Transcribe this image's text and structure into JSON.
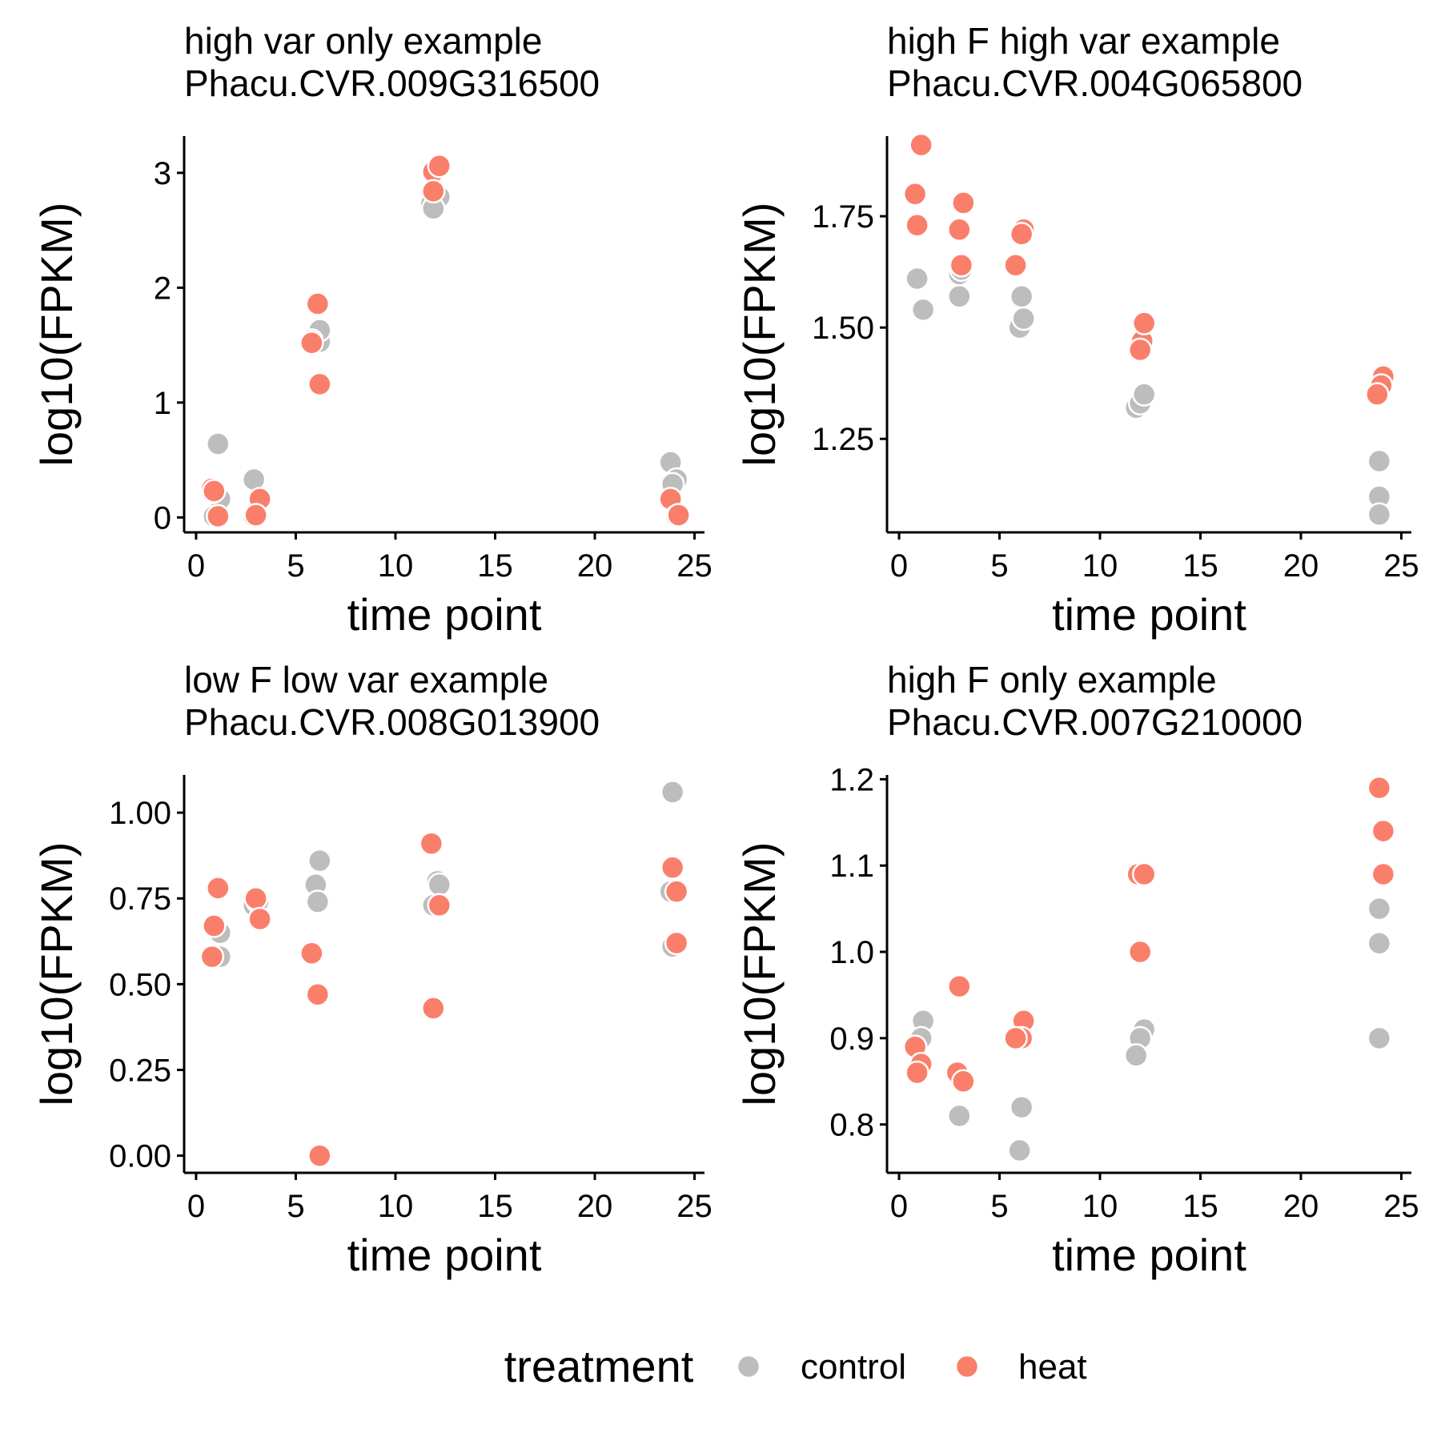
{
  "colors": {
    "control": "#BDBDBD",
    "heat": "#FA7F6B",
    "point_edge": "#FFFFFF",
    "axis": "#000000",
    "background": "#FFFFFF"
  },
  "legend": {
    "title": "treatment",
    "items": [
      {
        "label": "control",
        "color": "#BDBDBD"
      },
      {
        "label": "heat",
        "color": "#FA7F6B"
      }
    ],
    "placement": "bottom"
  },
  "chart_data": [
    {
      "type": "scatter",
      "title_line1": "high var only example",
      "title_line2": "Phacu.CVR.009G316500",
      "xlabel": "time point",
      "ylabel": "log10(FPKM)",
      "xlim": [
        -0.6,
        25.5
      ],
      "ylim": [
        -0.13,
        3.32
      ],
      "xticks": [
        0,
        5,
        10,
        15,
        20,
        25
      ],
      "xtick_labels": [
        "0",
        "5",
        "10",
        "15",
        "20",
        "25"
      ],
      "yticks": [
        0,
        1,
        2,
        3
      ],
      "ytick_labels": [
        "0",
        "1",
        "2",
        "3"
      ],
      "grid": false,
      "series": [
        {
          "name": "control",
          "points": [
            [
              0.9,
              0.01
            ],
            [
              1.2,
              0.16
            ],
            [
              1.1,
              0.64
            ],
            [
              0.8,
              0.22
            ],
            [
              2.9,
              0.33
            ],
            [
              3.1,
              0.02
            ],
            [
              2.8,
              0.01
            ],
            [
              5.9,
              1.55
            ],
            [
              6.2,
              1.53
            ],
            [
              6.2,
              1.63
            ],
            [
              5.8,
              1.54
            ],
            [
              11.8,
              2.73
            ],
            [
              12.1,
              2.76
            ],
            [
              12.2,
              2.79
            ],
            [
              11.9,
              2.69
            ],
            [
              23.8,
              0.48
            ],
            [
              24.1,
              0.33
            ],
            [
              23.9,
              0.29
            ],
            [
              24.2,
              0.02
            ]
          ]
        },
        {
          "name": "heat",
          "points": [
            [
              0.8,
              0.25
            ],
            [
              1.1,
              0.01
            ],
            [
              0.9,
              0.23
            ],
            [
              3.2,
              0.16
            ],
            [
              2.9,
              0.01
            ],
            [
              3.0,
              0.02
            ],
            [
              6.1,
              1.86
            ],
            [
              6.2,
              1.16
            ],
            [
              5.8,
              1.52
            ],
            [
              11.9,
              3.01
            ],
            [
              12.2,
              3.06
            ],
            [
              11.9,
              2.84
            ],
            [
              23.8,
              0.16
            ],
            [
              24.1,
              0.01
            ],
            [
              24.2,
              0.02
            ]
          ]
        }
      ]
    },
    {
      "type": "scatter",
      "title_line1": "high F high var example",
      "title_line2": "Phacu.CVR.004G065800",
      "xlabel": "time point",
      "ylabel": "log10(FPKM)",
      "xlim": [
        -0.6,
        25.5
      ],
      "ylim": [
        1.04,
        1.93
      ],
      "xticks": [
        0,
        5,
        10,
        15,
        20,
        25
      ],
      "xtick_labels": [
        "0",
        "5",
        "10",
        "15",
        "20",
        "25"
      ],
      "yticks": [
        1.25,
        1.5,
        1.75
      ],
      "ytick_labels": [
        "1.25",
        "1.50",
        "1.75"
      ],
      "grid": false,
      "series": [
        {
          "name": "control",
          "points": [
            [
              0.9,
              1.61
            ],
            [
              1.1,
              1.54
            ],
            [
              1.2,
              1.54
            ],
            [
              3.0,
              1.62
            ],
            [
              3.0,
              1.57
            ],
            [
              3.1,
              1.63
            ],
            [
              6.0,
              1.5
            ],
            [
              6.1,
              1.57
            ],
            [
              6.2,
              1.52
            ],
            [
              11.8,
              1.32
            ],
            [
              12.0,
              1.33
            ],
            [
              12.2,
              1.35
            ],
            [
              23.9,
              1.2
            ],
            [
              23.9,
              1.12
            ],
            [
              23.9,
              1.08
            ]
          ]
        },
        {
          "name": "heat",
          "points": [
            [
              1.1,
              1.91
            ],
            [
              0.8,
              1.8
            ],
            [
              0.9,
              1.73
            ],
            [
              3.2,
              1.78
            ],
            [
              3.0,
              1.72
            ],
            [
              3.1,
              1.64
            ],
            [
              6.2,
              1.72
            ],
            [
              6.1,
              1.71
            ],
            [
              5.8,
              1.64
            ],
            [
              12.1,
              1.47
            ],
            [
              12.2,
              1.51
            ],
            [
              12.0,
              1.45
            ],
            [
              24.1,
              1.39
            ],
            [
              24.0,
              1.37
            ],
            [
              23.8,
              1.35
            ]
          ]
        }
      ]
    },
    {
      "type": "scatter",
      "title_line1": "low F low var example",
      "title_line2": "Phacu.CVR.008G013900",
      "xlabel": "time point",
      "ylabel": "log10(FPKM)",
      "xlim": [
        -0.6,
        25.5
      ],
      "ylim": [
        -0.05,
        1.11
      ],
      "xticks": [
        0,
        5,
        10,
        15,
        20,
        25
      ],
      "xtick_labels": [
        "0",
        "5",
        "10",
        "15",
        "20",
        "25"
      ],
      "yticks": [
        0,
        0.25,
        0.5,
        0.75,
        1.0
      ],
      "ytick_labels": [
        "0.00",
        "0.25",
        "0.50",
        "0.75",
        "1.00"
      ],
      "grid": false,
      "series": [
        {
          "name": "control",
          "points": [
            [
              1.2,
              0.65
            ],
            [
              1.2,
              0.58
            ],
            [
              2.9,
              0.73
            ],
            [
              3.1,
              0.74
            ],
            [
              6.2,
              0.86
            ],
            [
              6.0,
              0.79
            ],
            [
              6.1,
              0.74
            ],
            [
              11.9,
              0.73
            ],
            [
              12.1,
              0.8
            ],
            [
              12.2,
              0.79
            ],
            [
              23.9,
              1.06
            ],
            [
              23.8,
              0.77
            ],
            [
              23.9,
              0.61
            ]
          ]
        },
        {
          "name": "heat",
          "points": [
            [
              1.1,
              0.78
            ],
            [
              0.9,
              0.67
            ],
            [
              0.8,
              0.58
            ],
            [
              3.0,
              0.75
            ],
            [
              3.2,
              0.69
            ],
            [
              5.8,
              0.59
            ],
            [
              6.1,
              0.47
            ],
            [
              6.2,
              0.0
            ],
            [
              11.8,
              0.91
            ],
            [
              12.2,
              0.73
            ],
            [
              11.9,
              0.43
            ],
            [
              23.9,
              0.84
            ],
            [
              24.1,
              0.77
            ],
            [
              24.1,
              0.62
            ]
          ]
        }
      ]
    },
    {
      "type": "scatter",
      "title_line1": "high F only example",
      "title_line2": "Phacu.CVR.007G210000",
      "xlabel": "time point",
      "ylabel": "log10(FPKM)",
      "xlim": [
        -0.6,
        25.5
      ],
      "ylim": [
        0.744,
        1.205
      ],
      "xticks": [
        0,
        5,
        10,
        15,
        20,
        25
      ],
      "xtick_labels": [
        "0",
        "5",
        "10",
        "15",
        "20",
        "25"
      ],
      "yticks": [
        0.8,
        0.9,
        1.0,
        1.1,
        1.2
      ],
      "ytick_labels": [
        "0.8",
        "0.9",
        "1.0",
        "1.1",
        "1.2"
      ],
      "grid": false,
      "series": [
        {
          "name": "control",
          "points": [
            [
              1.2,
              0.92
            ],
            [
              1.1,
              0.9
            ],
            [
              0.8,
              0.89
            ],
            [
              2.9,
              0.86
            ],
            [
              3.0,
              0.81
            ],
            [
              6.2,
              0.82
            ],
            [
              6.1,
              0.82
            ],
            [
              6.0,
              0.77
            ],
            [
              12.2,
              0.91
            ],
            [
              12.0,
              0.9
            ],
            [
              11.8,
              0.88
            ],
            [
              23.9,
              1.05
            ],
            [
              23.9,
              1.01
            ],
            [
              23.9,
              0.9
            ]
          ]
        },
        {
          "name": "heat",
          "points": [
            [
              0.8,
              0.89
            ],
            [
              1.1,
              0.87
            ],
            [
              0.9,
              0.86
            ],
            [
              3.0,
              0.96
            ],
            [
              2.9,
              0.86
            ],
            [
              3.2,
              0.85
            ],
            [
              6.2,
              0.92
            ],
            [
              6.1,
              0.9
            ],
            [
              5.8,
              0.9
            ],
            [
              11.9,
              1.09
            ],
            [
              12.2,
              1.09
            ],
            [
              12.0,
              1.0
            ],
            [
              23.9,
              1.19
            ],
            [
              24.1,
              1.14
            ],
            [
              24.1,
              1.09
            ]
          ]
        }
      ]
    }
  ]
}
